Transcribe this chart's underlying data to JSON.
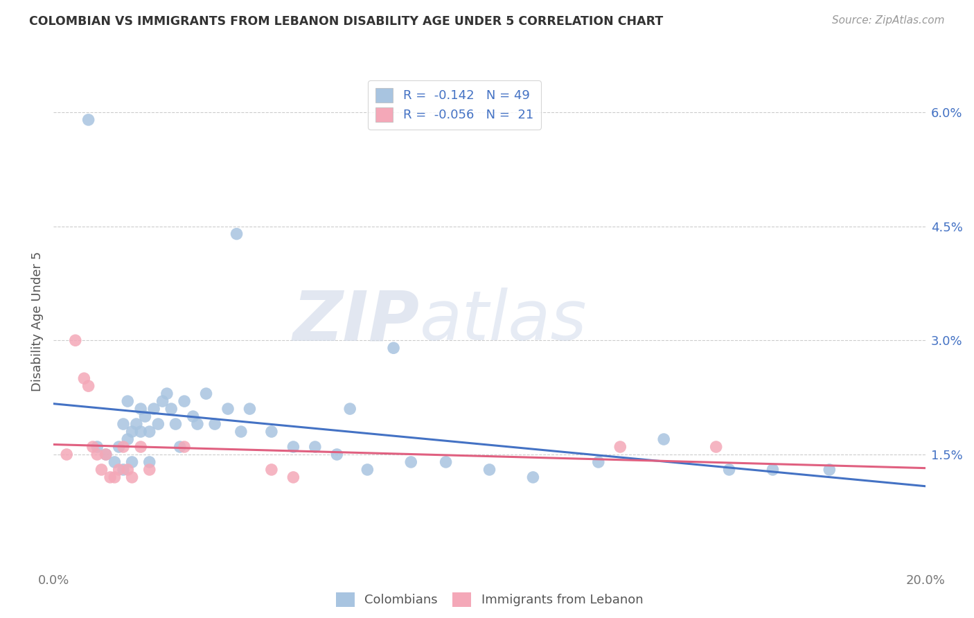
{
  "title": "COLOMBIAN VS IMMIGRANTS FROM LEBANON DISABILITY AGE UNDER 5 CORRELATION CHART",
  "source": "Source: ZipAtlas.com",
  "ylabel": "Disability Age Under 5",
  "xlim": [
    0.0,
    0.2
  ],
  "ylim": [
    0.0,
    0.065
  ],
  "xtick_positions": [
    0.0,
    0.05,
    0.1,
    0.15,
    0.2
  ],
  "xtick_labels": [
    "0.0%",
    "",
    "",
    "",
    "20.0%"
  ],
  "ytick_positions": [
    0.015,
    0.03,
    0.045,
    0.06
  ],
  "ytick_labels": [
    "1.5%",
    "3.0%",
    "4.5%",
    "6.0%"
  ],
  "colombian_R": "-0.142",
  "colombian_N": "49",
  "lebanon_R": "-0.056",
  "lebanon_N": "21",
  "colombian_color": "#a8c4e0",
  "lebanon_color": "#f4a8b8",
  "trendline_colombian_color": "#4472c4",
  "trendline_lebanon_color": "#e06080",
  "background_color": "#ffffff",
  "watermark_zip": "ZIP",
  "watermark_atlas": "atlas",
  "colombians_label": "Colombians",
  "lebanon_label": "Immigrants from Lebanon",
  "grid_color": "#cccccc",
  "colombian_points_x": [
    0.008,
    0.01,
    0.012,
    0.014,
    0.015,
    0.016,
    0.016,
    0.017,
    0.017,
    0.018,
    0.018,
    0.019,
    0.02,
    0.02,
    0.021,
    0.022,
    0.022,
    0.023,
    0.024,
    0.025,
    0.026,
    0.027,
    0.028,
    0.029,
    0.03,
    0.032,
    0.033,
    0.035,
    0.037,
    0.04,
    0.042,
    0.043,
    0.045,
    0.05,
    0.055,
    0.06,
    0.065,
    0.068,
    0.072,
    0.078,
    0.082,
    0.09,
    0.1,
    0.11,
    0.125,
    0.14,
    0.155,
    0.165,
    0.178
  ],
  "colombian_points_y": [
    0.059,
    0.016,
    0.015,
    0.014,
    0.016,
    0.013,
    0.019,
    0.017,
    0.022,
    0.018,
    0.014,
    0.019,
    0.018,
    0.021,
    0.02,
    0.018,
    0.014,
    0.021,
    0.019,
    0.022,
    0.023,
    0.021,
    0.019,
    0.016,
    0.022,
    0.02,
    0.019,
    0.023,
    0.019,
    0.021,
    0.044,
    0.018,
    0.021,
    0.018,
    0.016,
    0.016,
    0.015,
    0.021,
    0.013,
    0.029,
    0.014,
    0.014,
    0.013,
    0.012,
    0.014,
    0.017,
    0.013,
    0.013,
    0.013
  ],
  "lebanon_points_x": [
    0.003,
    0.005,
    0.007,
    0.008,
    0.009,
    0.01,
    0.011,
    0.012,
    0.013,
    0.014,
    0.015,
    0.016,
    0.017,
    0.018,
    0.02,
    0.022,
    0.03,
    0.05,
    0.055,
    0.13,
    0.152
  ],
  "lebanon_points_y": [
    0.015,
    0.03,
    0.025,
    0.024,
    0.016,
    0.015,
    0.013,
    0.015,
    0.012,
    0.012,
    0.013,
    0.016,
    0.013,
    0.012,
    0.016,
    0.013,
    0.016,
    0.013,
    0.012,
    0.016,
    0.016
  ]
}
